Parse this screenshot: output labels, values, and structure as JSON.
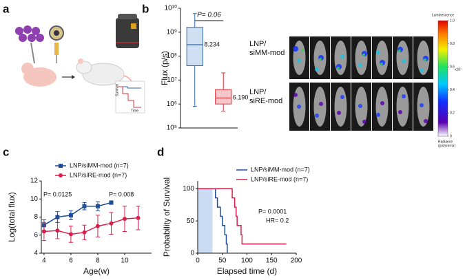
{
  "panel_labels": [
    "a",
    "b",
    "c",
    "d"
  ],
  "illustration": {
    "survival_axis": "Survival",
    "time_axis": "Time"
  },
  "imaging": {
    "groups": [
      {
        "label": [
          "LNP/",
          "siMM-mod"
        ],
        "color": "#2b5fa6"
      },
      {
        "label": [
          "LNP/",
          "siRE-mod"
        ],
        "color": "#e0303a"
      }
    ],
    "colorbar": {
      "title": "Luminescence",
      "lim": [
        0,
        1
      ],
      "ticks": [
        {
          "value": 1,
          "label": "1.0"
        },
        0.8,
        0.6,
        0.4,
        0.2,
        0
      ],
      "exponent": "x10⁷",
      "unit": [
        "Radiance",
        "(p/s/cm²/sr)"
      ]
    }
  },
  "chart_data": [
    {
      "type": "box",
      "ylabel": "Flux (p/s)",
      "yscale": "log",
      "annotation": "P= 0.06",
      "ylim": [
        100000,
        10000000000
      ],
      "yticks": [
        {
          "value": 100000,
          "label": "10⁵"
        },
        {
          "value": 1000000,
          "label": "10⁶"
        },
        {
          "value": 10000000,
          "label": "10⁷"
        },
        {
          "value": 100000000,
          "label": "10⁸"
        },
        {
          "value": 1000000000,
          "label": "10⁹"
        },
        {
          "value": 10000000000,
          "label": "10¹⁰"
        }
      ],
      "series": [
        {
          "color": "#3566a8",
          "fill": "#cfe0f3",
          "min": 800000,
          "q1": 40000000,
          "median": 300000000,
          "q3": 1600000000,
          "max": 6000000000,
          "annotation": "8.234"
        },
        {
          "color": "#e0303a",
          "fill": "#f7c6c9",
          "min": 500000,
          "q1": 1000000,
          "median": 1800000,
          "q3": 4000000,
          "max": 20000000,
          "annotation": "6.190"
        }
      ]
    },
    {
      "type": "line",
      "xlabel": "Age(w)",
      "ylabel": "Log(total flux)",
      "xlim": [
        3.8,
        12
      ],
      "xticks": [
        4,
        6,
        8,
        10
      ],
      "ylim": [
        4,
        12
      ],
      "yticks": [
        4,
        6,
        8,
        10,
        12
      ],
      "annotations": [
        "P= 0.0125",
        "P= 0.008"
      ],
      "series": [
        {
          "name": "LNP/siMM-mod (n=7)",
          "color": "#1f4e96",
          "marker": "square",
          "x": [
            4,
            5,
            6,
            7,
            8,
            9
          ],
          "values": [
            7.1,
            8.0,
            8.2,
            9.2,
            9.2,
            9.6
          ],
          "errors": [
            0.6,
            0.6,
            0.5,
            0.4,
            0.5,
            0.2
          ]
        },
        {
          "name": "LNP/siRE-mod (n=7)",
          "color": "#d81e4a",
          "marker": "circle",
          "x": [
            4,
            5,
            6,
            7,
            8,
            9,
            10,
            11
          ],
          "values": [
            6.4,
            6.5,
            6.1,
            6.3,
            7.0,
            7.3,
            7.8,
            7.9
          ],
          "errors": [
            1.0,
            0.9,
            0.9,
            0.8,
            1.2,
            1.2,
            1.4,
            1.3
          ]
        }
      ]
    },
    {
      "type": "step",
      "xlabel": "Elapsed time (d)",
      "ylabel": "Probability of Survival",
      "xlim": [
        0,
        200
      ],
      "xticks": [
        0,
        50,
        100,
        150,
        200
      ],
      "ylim": [
        0,
        112
      ],
      "yticks": [
        0,
        50,
        100
      ],
      "shaded_range": [
        0,
        30
      ],
      "shade_color": "#c9dcf4",
      "annotations": [
        "P= 0.0001",
        "HR= 0.2"
      ],
      "series": [
        {
          "name": "LNP/siMM-mod (n=7)",
          "color": "#1f4e96",
          "x": [
            0,
            36,
            40,
            46,
            50,
            55,
            58,
            60
          ],
          "values": [
            100,
            85.7,
            71.4,
            57.1,
            42.9,
            28.6,
            14.3,
            0
          ]
        },
        {
          "name": "LNP/siRE-mod (n=7)",
          "color": "#d81e4a",
          "x": [
            0,
            70,
            75,
            78,
            80,
            88,
            90,
            180
          ],
          "values": [
            100,
            85.7,
            71.4,
            57.1,
            42.9,
            28.6,
            14.3,
            14.3
          ]
        }
      ]
    }
  ]
}
